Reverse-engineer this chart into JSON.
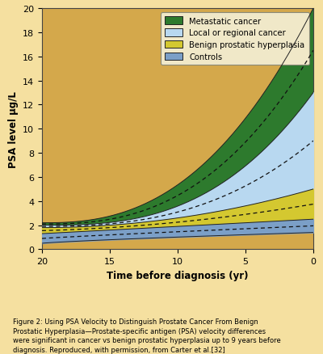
{
  "xlabel": "Time before diagnosis (yr)",
  "ylabel": "PSA level μg/L",
  "xlim": [
    20,
    0
  ],
  "ylim": [
    0,
    20
  ],
  "xticks": [
    20,
    15,
    10,
    5,
    0
  ],
  "yticks": [
    0,
    2,
    4,
    6,
    8,
    10,
    12,
    14,
    16,
    18,
    20
  ],
  "background_color": "#f5e0a0",
  "plot_bg_color": "#d4a84b",
  "legend_labels": [
    "Metastatic cancer",
    "Local or regional cancer",
    "Benign prostatic hyperplasia",
    "Controls"
  ],
  "fill_colors": [
    "#2d7a2d",
    "#b8d8f0",
    "#d4c830",
    "#7b9fc7"
  ],
  "border_color": "#222222",
  "dashed_line_color": "#111111",
  "caption_bold": "Figure 2: Using PSA Velocity to Distinguish Prostate Cancer From Benign\nProstatic Hyperplasia—",
  "caption_normal": "Prostate-specific antigen (PSA) velocity differences\nwere significant in cancer vs benign prostatic hyperplasia up to 9 years before\ndiagnosis. Reproduced, with permission, from Carter et al.[32]"
}
